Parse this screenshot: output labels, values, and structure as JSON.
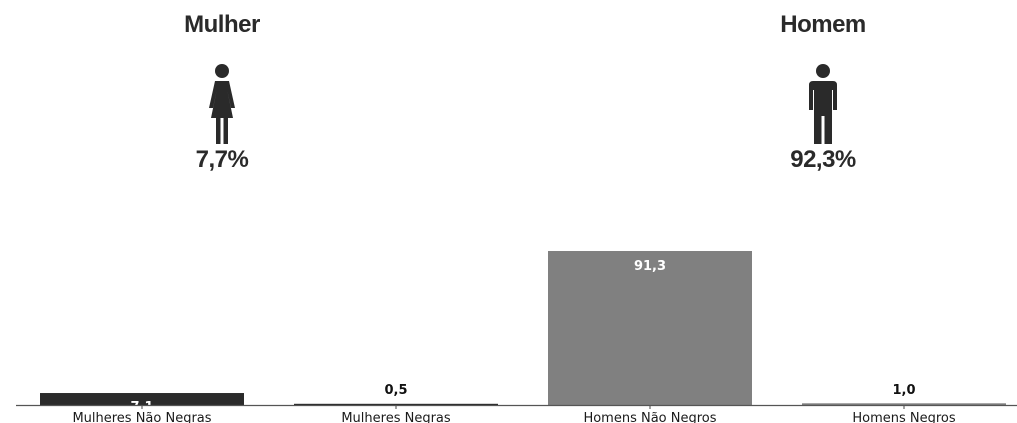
{
  "header": {
    "female": {
      "title": "Mulher",
      "percent": "7,7%",
      "icon": "female-person-icon"
    },
    "male": {
      "title": "Homem",
      "percent": "92,3%",
      "icon": "male-person-icon"
    }
  },
  "colors": {
    "dark": "#2b2b2b",
    "gray": "#808080",
    "text": "#2a2a2a"
  },
  "chart_data": {
    "type": "bar",
    "categories": [
      "Mulheres Não Negras",
      "Mulheres Negras",
      "Homens Não Negros",
      "Homens Negros"
    ],
    "values": [
      7.1,
      0.5,
      91.3,
      1.0
    ],
    "value_labels": [
      "7,1",
      "0,5",
      "91,3",
      "1,0"
    ],
    "bar_colors": [
      "#2b2b2b",
      "#2b2b2b",
      "#808080",
      "#808080"
    ],
    "ylim": [
      0,
      100
    ],
    "grid": false,
    "legend": "none"
  }
}
